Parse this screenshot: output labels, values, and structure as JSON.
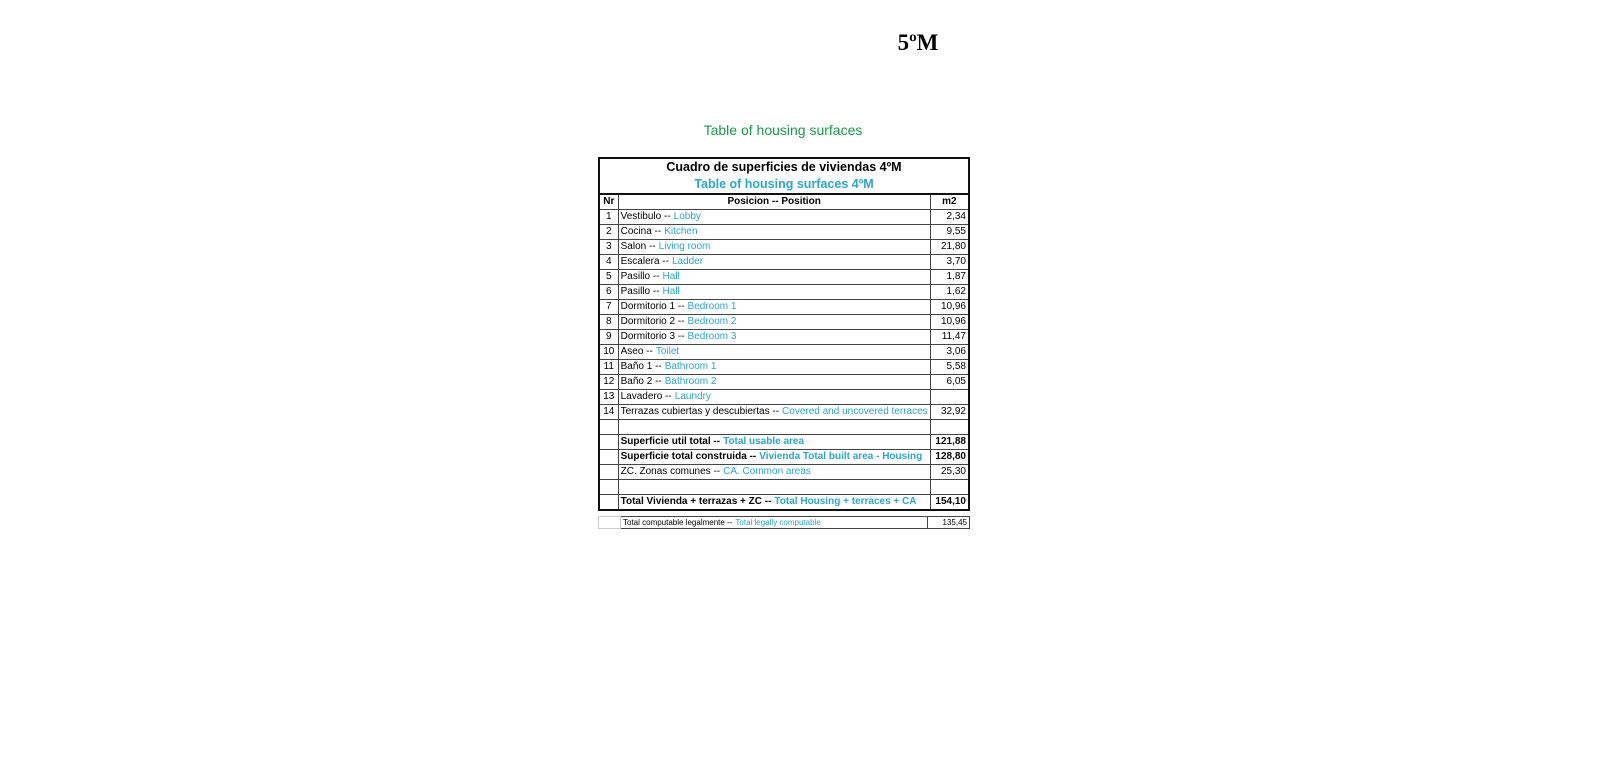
{
  "page_title": "5ºM",
  "caption": "Table of housing surfaces",
  "table": {
    "title_es": "Cuadro de superficies de viviendas 4ºM",
    "title_en": "Table of housing surfaces 4ºM",
    "header": [
      "Nr",
      "Posicion -- Position",
      "m2"
    ],
    "rows": [
      {
        "nr": 1,
        "es": "Vestibulo --",
        "en": "Lobby",
        "m2": "2,34"
      },
      {
        "nr": 2,
        "es": "Cocina --",
        "en": "Kitchen",
        "m2": "9,55"
      },
      {
        "nr": 3,
        "es": "Salon --",
        "en": "Living room",
        "m2": "21,80"
      },
      {
        "nr": 4,
        "es": "Escalera --",
        "en": "Ladder",
        "m2": "3,70"
      },
      {
        "nr": 5,
        "es": "Pasillo --",
        "en": "Hall",
        "m2": "1,87"
      },
      {
        "nr": 6,
        "es": "Pasillo --",
        "en": "Hall",
        "m2": "1,62"
      },
      {
        "nr": 7,
        "es": "Dormitorio 1 --",
        "en": "Bedroom 1",
        "m2": "10,96"
      },
      {
        "nr": 8,
        "es": "Dormitorio 2 --",
        "en": "Bedroom 2",
        "m2": "10,96"
      },
      {
        "nr": 9,
        "es": "Dormitorio 3 --",
        "en": "Bedroom 3",
        "m2": "11,47"
      },
      {
        "nr": 10,
        "es": "Aseo --",
        "en": "Toilet",
        "m2": "3,06"
      },
      {
        "nr": 11,
        "es": "Baño 1 --",
        "en": "Bathroom 1",
        "m2": "5,58"
      },
      {
        "nr": 12,
        "es": "Baño 2 --",
        "en": "Bathroom 2",
        "m2": "6,05"
      },
      {
        "nr": 13,
        "es": "Lavadero --",
        "en": "Laundry"
      },
      {
        "nr": 14,
        "es": "Terrazas cubiertas y descubiertas --",
        "en": "Covered and uncovered terraces",
        "m2": "32,92"
      }
    ],
    "summary": [
      {
        "es": "Superficie util total --",
        "en": "Total usable area",
        "m2": "121,88",
        "bold": true
      },
      {
        "es": "Superficie total construida --",
        "en": "Vivienda Total built area - Housing",
        "m2": "128,80",
        "bold": true
      },
      {
        "es": "ZC. Zonas comunes  --",
        "en": "CA. Common areas",
        "m2": "25,30",
        "bold": false
      },
      {
        "es": "Total Vivienda + terrazas + ZC  --",
        "en": "Total Housing + terraces + CA",
        "m2": "154,10",
        "bold": true
      }
    ],
    "footer": {
      "es": "Total computable legalmente --",
      "en": "Total legally computable",
      "m2": "135,45"
    }
  }
}
